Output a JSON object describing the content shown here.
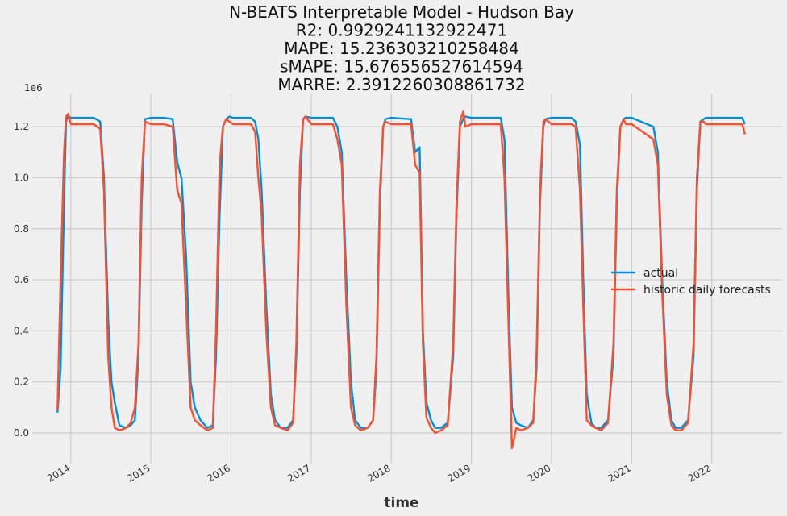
{
  "chart_data": {
    "type": "line",
    "title_lines": [
      "N-BEATS Interpretable Model - Hudson Bay",
      "R2: 0.9929241132922471",
      "MAPE: 15.236303210258484",
      "sMAPE: 15.676556527614594",
      "MARRE: 2.3912260308861732"
    ],
    "xlabel": "time",
    "ylabel": "",
    "y_offset_label": "1e6",
    "x_ticks": [
      "2014",
      "2015",
      "2016",
      "2017",
      "2018",
      "2019",
      "2020",
      "2021",
      "2022"
    ],
    "y_ticks": [
      "0.0",
      "0.2",
      "0.4",
      "0.6",
      "0.8",
      "1.0",
      "1.2"
    ],
    "xlim": [
      "2013-07-09",
      "2022-11-18"
    ],
    "ylim": [
      -0.12,
      1.33
    ],
    "grid": true,
    "legend_position": "center-right",
    "colors": {
      "background": "#f0f0f0",
      "grid": "#cbcbcb",
      "actual": "#008fd5",
      "forecast": "#fc4f30"
    },
    "series": [
      {
        "name": "actual",
        "color": "#008fd5",
        "x": [
          "2013-11-01",
          "2013-11-15",
          "2013-12-01",
          "2013-12-10",
          "2013-12-20",
          "2014-01-01",
          "2014-02-15",
          "2014-04-15",
          "2014-05-15",
          "2014-06-01",
          "2014-06-20",
          "2014-07-05",
          "2014-07-20",
          "2014-08-10",
          "2014-09-10",
          "2014-10-01",
          "2014-10-20",
          "2014-11-05",
          "2014-11-20",
          "2014-12-05",
          "2015-01-01",
          "2015-03-01",
          "2015-04-10",
          "2015-05-01",
          "2015-05-20",
          "2015-06-10",
          "2015-07-01",
          "2015-07-20",
          "2015-08-15",
          "2015-09-15",
          "2015-10-10",
          "2015-10-25",
          "2015-11-10",
          "2015-11-25",
          "2015-12-10",
          "2015-12-25",
          "2016-01-10",
          "2016-04-01",
          "2016-04-20",
          "2016-05-05",
          "2016-05-20",
          "2016-06-10",
          "2016-07-01",
          "2016-07-20",
          "2016-08-15",
          "2016-09-15",
          "2016-10-10",
          "2016-10-25",
          "2016-11-10",
          "2016-11-25",
          "2016-12-05",
          "2017-01-01",
          "2017-04-10",
          "2017-04-30",
          "2017-05-20",
          "2017-06-10",
          "2017-07-01",
          "2017-07-20",
          "2017-08-15",
          "2017-09-15",
          "2017-10-10",
          "2017-10-25",
          "2017-11-10",
          "2017-11-25",
          "2017-12-05",
          "2018-01-01",
          "2018-04-01",
          "2018-04-20",
          "2018-05-10",
          "2018-05-25",
          "2018-06-10",
          "2018-07-01",
          "2018-07-20",
          "2018-08-15",
          "2018-09-15",
          "2018-10-10",
          "2018-10-25",
          "2018-11-10",
          "2018-11-25",
          "2018-12-05",
          "2019-01-01",
          "2019-05-15",
          "2019-06-01",
          "2019-06-20",
          "2019-07-05",
          "2019-07-25",
          "2019-08-15",
          "2019-09-15",
          "2019-10-10",
          "2019-10-25",
          "2019-11-10",
          "2019-11-25",
          "2019-12-05",
          "2020-01-01",
          "2020-04-01",
          "2020-04-20",
          "2020-05-10",
          "2020-05-25",
          "2020-06-10",
          "2020-07-01",
          "2020-07-20",
          "2020-08-15",
          "2020-09-15",
          "2020-10-10",
          "2020-10-25",
          "2020-11-10",
          "2020-11-25",
          "2020-12-05",
          "2021-01-01",
          "2021-04-10",
          "2021-04-30",
          "2021-05-20",
          "2021-06-10",
          "2021-07-01",
          "2021-07-20",
          "2021-08-15",
          "2021-09-15",
          "2021-10-10",
          "2021-10-25",
          "2021-11-10",
          "2021-11-25",
          "2021-12-05",
          "2022-01-01",
          "2022-05-20",
          "2022-06-01"
        ],
        "values": [
          0.08,
          0.25,
          0.9,
          1.22,
          1.24,
          1.235,
          1.235,
          1.235,
          1.22,
          1.0,
          0.45,
          0.2,
          0.12,
          0.03,
          0.02,
          0.03,
          0.05,
          0.3,
          0.9,
          1.23,
          1.235,
          1.235,
          1.23,
          1.06,
          1.0,
          0.7,
          0.2,
          0.1,
          0.05,
          0.02,
          0.03,
          0.3,
          0.85,
          1.2,
          1.23,
          1.24,
          1.235,
          1.235,
          1.22,
          1.15,
          0.95,
          0.5,
          0.15,
          0.05,
          0.02,
          0.02,
          0.05,
          0.3,
          0.95,
          1.23,
          1.24,
          1.235,
          1.235,
          1.2,
          1.1,
          0.6,
          0.2,
          0.05,
          0.02,
          0.02,
          0.05,
          0.25,
          0.9,
          1.2,
          1.23,
          1.235,
          1.23,
          1.1,
          1.12,
          0.4,
          0.12,
          0.05,
          0.02,
          0.02,
          0.04,
          0.3,
          0.85,
          1.2,
          1.23,
          1.24,
          1.235,
          1.235,
          1.15,
          0.5,
          0.1,
          0.04,
          0.03,
          0.02,
          0.05,
          0.25,
          0.9,
          1.2,
          1.23,
          1.235,
          1.235,
          1.22,
          1.13,
          0.6,
          0.15,
          0.04,
          0.02,
          0.02,
          0.05,
          0.3,
          0.9,
          1.2,
          1.23,
          1.235,
          1.235,
          1.2,
          1.1,
          0.6,
          0.2,
          0.05,
          0.02,
          0.02,
          0.05,
          0.3,
          0.95,
          1.22,
          1.23,
          1.235,
          1.235,
          1.235,
          1.21
        ]
      },
      {
        "name": "historic daily forecasts",
        "color": "#fc4f30",
        "x": [
          "2013-11-01",
          "2013-11-15",
          "2013-12-01",
          "2013-12-10",
          "2013-12-20",
          "2014-01-01",
          "2014-02-15",
          "2014-04-15",
          "2014-05-15",
          "2014-06-01",
          "2014-06-20",
          "2014-07-05",
          "2014-07-20",
          "2014-08-10",
          "2014-09-10",
          "2014-10-01",
          "2014-10-20",
          "2014-11-05",
          "2014-11-20",
          "2014-12-05",
          "2015-01-01",
          "2015-03-01",
          "2015-04-10",
          "2015-05-01",
          "2015-05-20",
          "2015-06-10",
          "2015-07-01",
          "2015-07-20",
          "2015-08-15",
          "2015-09-15",
          "2015-10-10",
          "2015-10-25",
          "2015-11-10",
          "2015-11-25",
          "2015-12-10",
          "2015-12-25",
          "2016-01-10",
          "2016-04-01",
          "2016-04-20",
          "2016-05-05",
          "2016-05-20",
          "2016-06-10",
          "2016-07-01",
          "2016-07-20",
          "2016-08-15",
          "2016-09-15",
          "2016-10-10",
          "2016-10-25",
          "2016-11-10",
          "2016-11-25",
          "2016-12-05",
          "2017-01-01",
          "2017-04-10",
          "2017-04-30",
          "2017-05-20",
          "2017-06-10",
          "2017-07-01",
          "2017-07-20",
          "2017-08-15",
          "2017-09-15",
          "2017-10-10",
          "2017-10-25",
          "2017-11-10",
          "2017-11-25",
          "2017-12-05",
          "2018-01-01",
          "2018-04-01",
          "2018-04-20",
          "2018-05-10",
          "2018-05-25",
          "2018-06-10",
          "2018-07-01",
          "2018-07-20",
          "2018-08-15",
          "2018-09-15",
          "2018-10-10",
          "2018-10-25",
          "2018-11-10",
          "2018-11-25",
          "2018-12-05",
          "2019-01-01",
          "2019-05-15",
          "2019-06-01",
          "2019-06-20",
          "2019-07-05",
          "2019-07-25",
          "2019-08-15",
          "2019-09-15",
          "2019-10-10",
          "2019-10-25",
          "2019-11-10",
          "2019-11-25",
          "2019-12-05",
          "2020-01-01",
          "2020-04-01",
          "2020-04-20",
          "2020-05-10",
          "2020-05-25",
          "2020-06-10",
          "2020-07-01",
          "2020-07-20",
          "2020-08-15",
          "2020-09-15",
          "2020-10-10",
          "2020-10-25",
          "2020-11-10",
          "2020-11-25",
          "2020-12-05",
          "2021-01-01",
          "2021-04-10",
          "2021-04-30",
          "2021-05-20",
          "2021-06-10",
          "2021-07-01",
          "2021-07-20",
          "2021-08-15",
          "2021-09-15",
          "2021-10-10",
          "2021-10-25",
          "2021-11-10",
          "2021-11-25",
          "2021-12-05",
          "2022-01-01",
          "2022-05-20",
          "2022-06-01"
        ],
        "values": [
          0.09,
          0.6,
          1.1,
          1.24,
          1.25,
          1.21,
          1.21,
          1.21,
          1.19,
          0.95,
          0.3,
          0.1,
          0.02,
          0.01,
          0.02,
          0.04,
          0.1,
          0.35,
          1.0,
          1.22,
          1.21,
          1.21,
          1.2,
          0.95,
          0.9,
          0.5,
          0.1,
          0.05,
          0.03,
          0.01,
          0.02,
          0.4,
          1.05,
          1.2,
          1.23,
          1.22,
          1.21,
          1.21,
          1.18,
          1.0,
          0.85,
          0.4,
          0.1,
          0.03,
          0.02,
          0.01,
          0.04,
          0.35,
          1.05,
          1.23,
          1.24,
          1.21,
          1.21,
          1.15,
          1.05,
          0.5,
          0.1,
          0.03,
          0.01,
          0.02,
          0.05,
          0.3,
          0.95,
          1.2,
          1.22,
          1.21,
          1.21,
          1.05,
          1.02,
          0.35,
          0.06,
          0.02,
          0.0,
          0.01,
          0.03,
          0.35,
          0.9,
          1.22,
          1.26,
          1.2,
          1.21,
          1.21,
          1.0,
          0.4,
          -0.06,
          0.02,
          0.01,
          0.02,
          0.04,
          0.3,
          0.95,
          1.22,
          1.23,
          1.21,
          1.21,
          1.2,
          0.95,
          0.5,
          0.05,
          0.03,
          0.02,
          0.01,
          0.04,
          0.35,
          0.95,
          1.2,
          1.23,
          1.21,
          1.21,
          1.15,
          1.05,
          0.55,
          0.15,
          0.03,
          0.01,
          0.01,
          0.04,
          0.35,
          1.0,
          1.22,
          1.22,
          1.21,
          1.21,
          1.21,
          1.17
        ]
      }
    ]
  }
}
